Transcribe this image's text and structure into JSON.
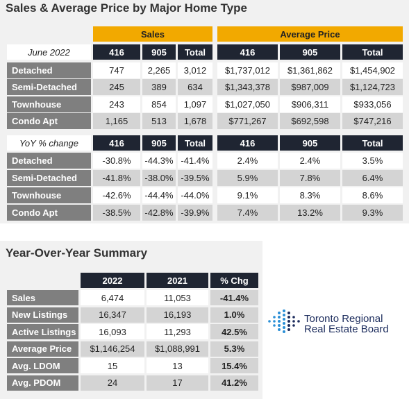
{
  "title": "Sales & Average Price by Major Home Type",
  "main_table": {
    "group_headers": [
      "Sales",
      "Average Price"
    ],
    "sections": [
      {
        "period_label": "June 2022",
        "columns": [
          "416",
          "905",
          "Total",
          "416",
          "905",
          "Total"
        ],
        "rows": [
          {
            "label": "Detached",
            "cells": [
              "747",
              "2,265",
              "3,012",
              "$1,737,012",
              "$1,361,862",
              "$1,454,902"
            ]
          },
          {
            "label": "Semi-Detached",
            "cells": [
              "245",
              "389",
              "634",
              "$1,343,378",
              "$987,009",
              "$1,124,723"
            ]
          },
          {
            "label": "Townhouse",
            "cells": [
              "243",
              "854",
              "1,097",
              "$1,027,050",
              "$906,311",
              "$933,056"
            ]
          },
          {
            "label": "Condo Apt",
            "cells": [
              "1,165",
              "513",
              "1,678",
              "$771,267",
              "$692,598",
              "$747,216"
            ]
          }
        ]
      },
      {
        "period_label": "YoY % change",
        "columns": [
          "416",
          "905",
          "Total",
          "416",
          "905",
          "Total"
        ],
        "rows": [
          {
            "label": "Detached",
            "cells": [
              "-30.8%",
              "-44.3%",
              "-41.4%",
              "2.4%",
              "2.4%",
              "3.5%"
            ]
          },
          {
            "label": "Semi-Detached",
            "cells": [
              "-41.8%",
              "-38.0%",
              "-39.5%",
              "5.9%",
              "7.8%",
              "6.4%"
            ]
          },
          {
            "label": "Townhouse",
            "cells": [
              "-42.6%",
              "-44.4%",
              "-44.0%",
              "9.1%",
              "8.3%",
              "8.6%"
            ]
          },
          {
            "label": "Condo Apt",
            "cells": [
              "-38.5%",
              "-42.8%",
              "-39.9%",
              "7.4%",
              "13.2%",
              "9.3%"
            ]
          }
        ]
      }
    ]
  },
  "summary": {
    "title": "Year-Over-Year Summary",
    "columns": [
      "2022",
      "2021",
      "% Chg"
    ],
    "rows": [
      {
        "label": "Sales",
        "cells": [
          "6,474",
          "11,053",
          "-41.4%"
        ]
      },
      {
        "label": "New Listings",
        "cells": [
          "16,347",
          "16,193",
          "1.0%"
        ]
      },
      {
        "label": "Active Listings",
        "cells": [
          "16,093",
          "11,293",
          "42.5%"
        ]
      },
      {
        "label": "Average Price",
        "cells": [
          "$1,146,254",
          "$1,088,991",
          "5.3%"
        ]
      },
      {
        "label": "Avg. LDOM",
        "cells": [
          "15",
          "13",
          "15.4%"
        ]
      },
      {
        "label": "Avg. PDOM",
        "cells": [
          "24",
          "17",
          "41.2%"
        ]
      }
    ]
  },
  "logo": {
    "lines": [
      "Toronto Regional",
      "Real Estate Board"
    ]
  }
}
